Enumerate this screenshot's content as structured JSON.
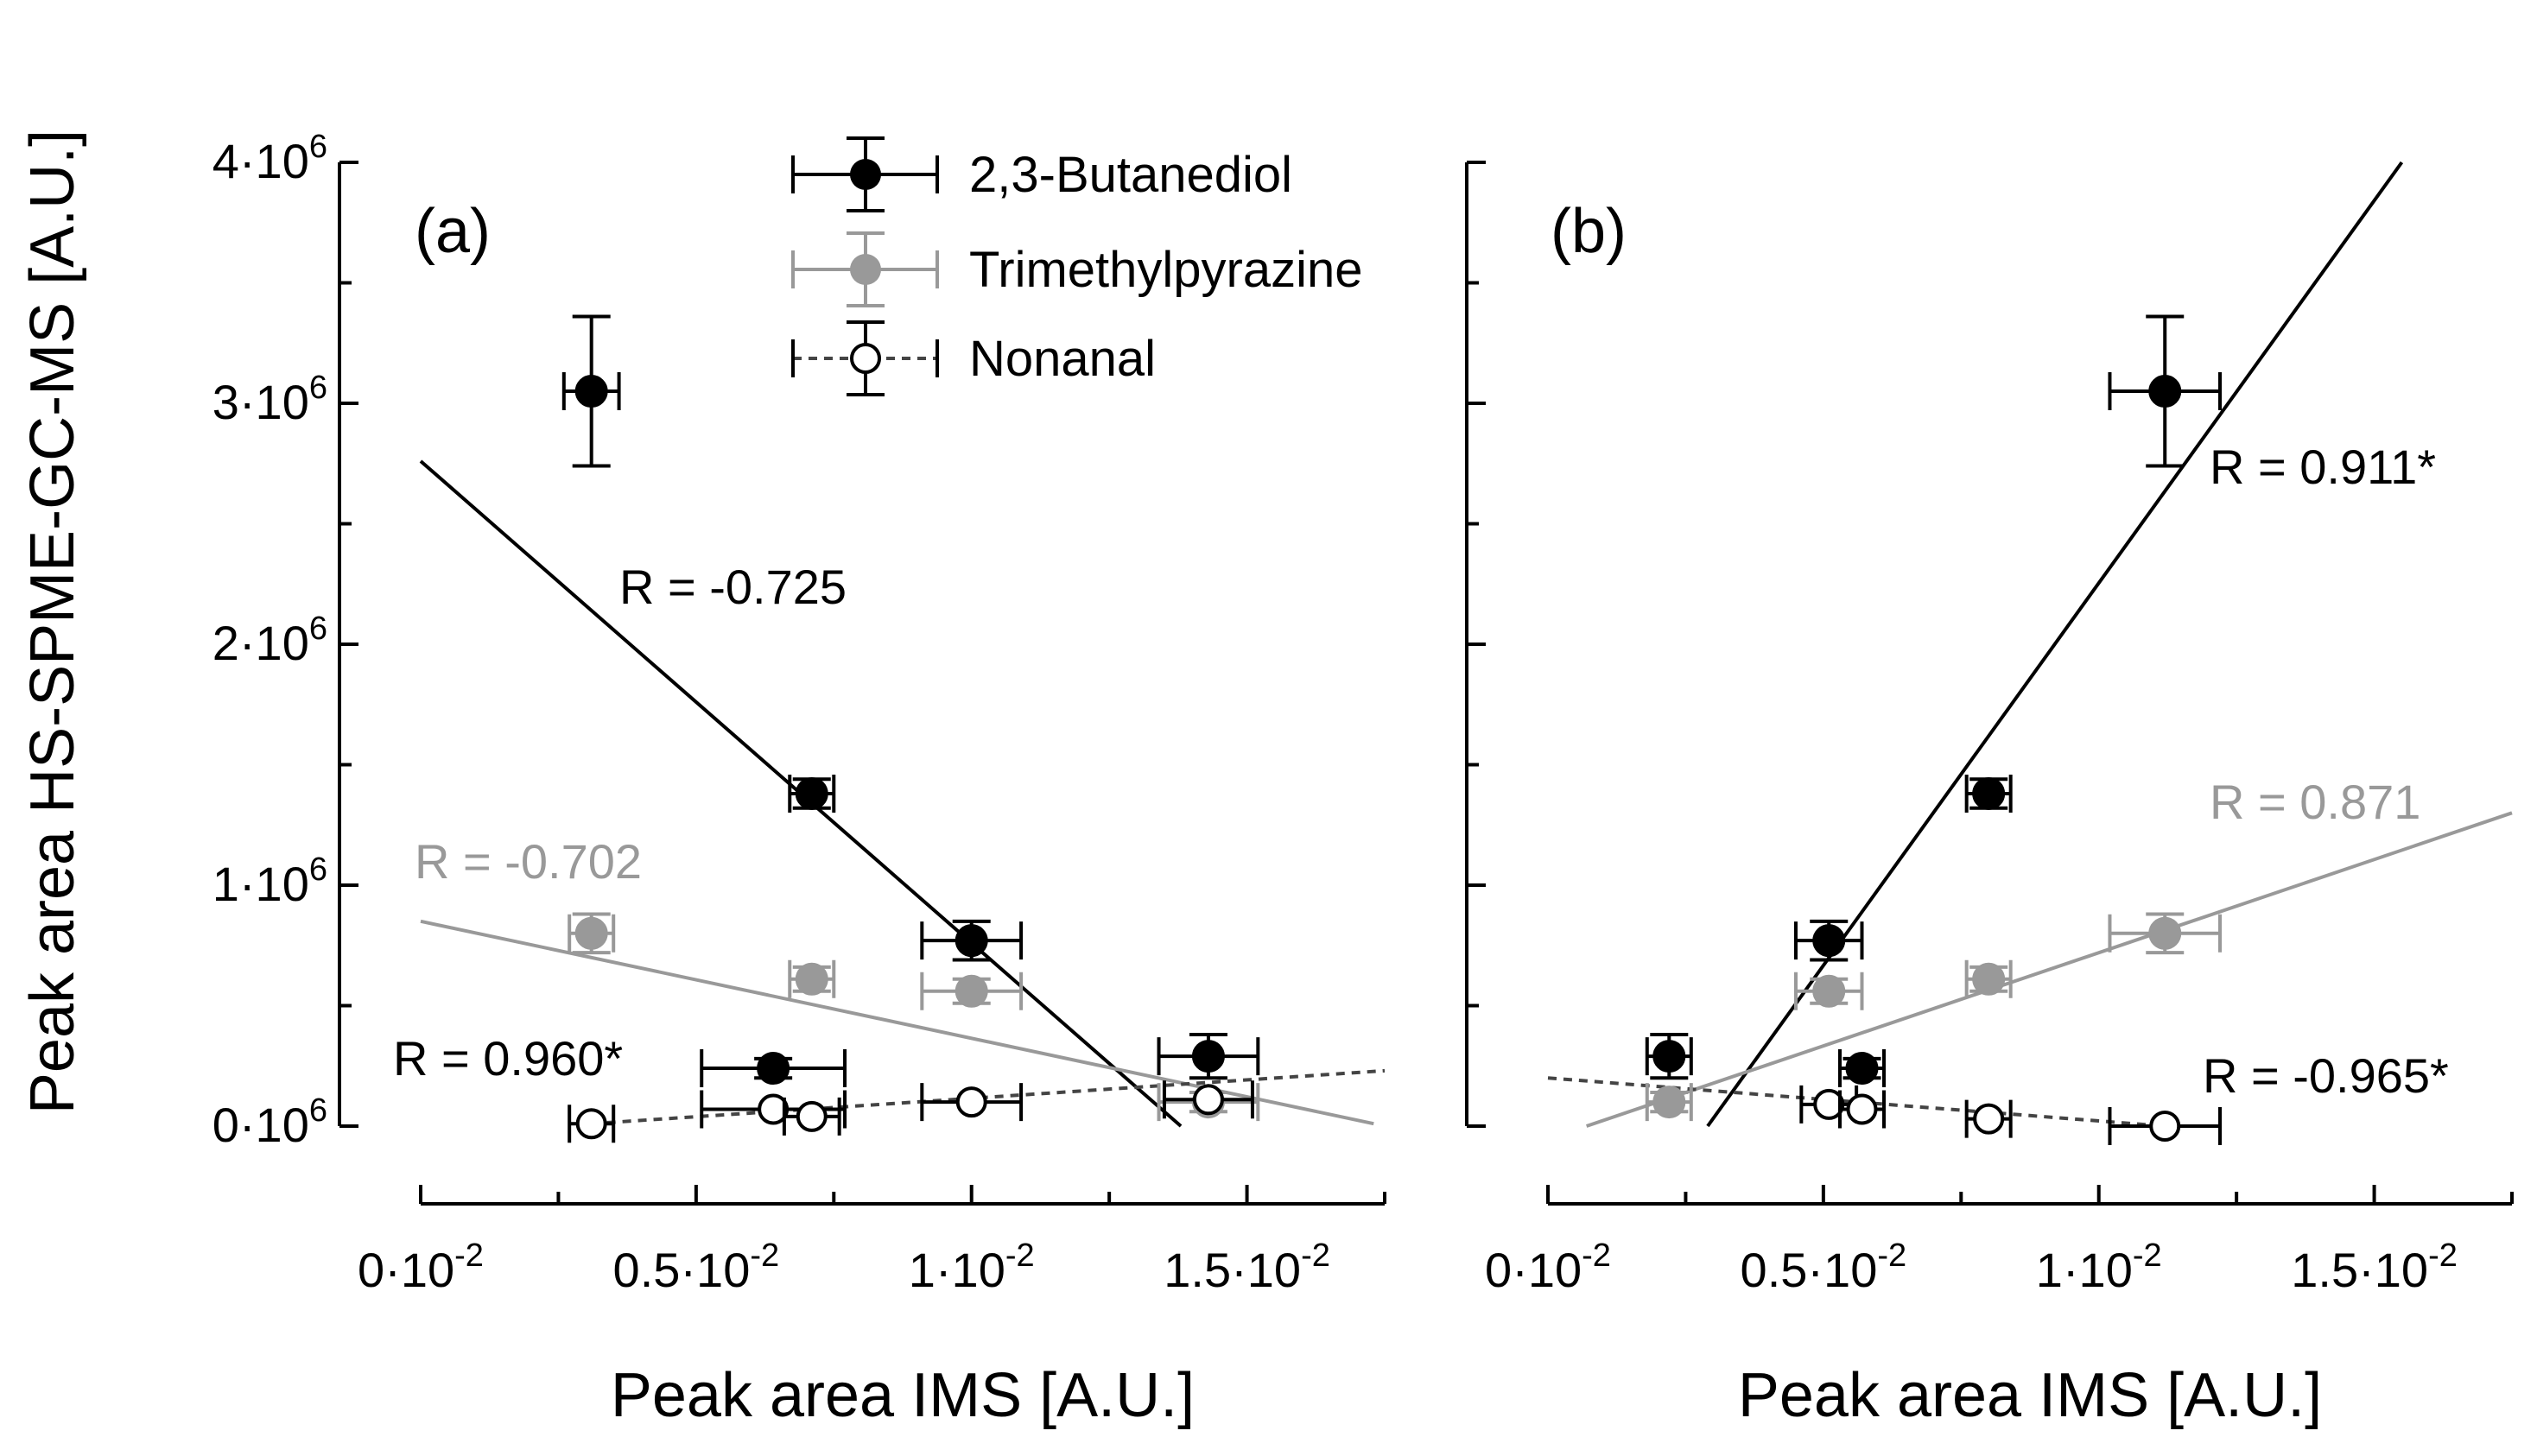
{
  "figure": {
    "ylabel": "Peak area HS-SPME-GC-MS [A.U.]",
    "legend": [
      {
        "name": "2,3-Butanediol",
        "color": "#000000",
        "marker": "filled",
        "line": "solid"
      },
      {
        "name": "Trimethylpyrazine",
        "color": "#999999",
        "marker": "filled",
        "line": "solid"
      },
      {
        "name": "Nonanal",
        "color": "#000000",
        "marker": "open",
        "line": "dotted"
      }
    ],
    "y_ticks": [
      {
        "value": 0,
        "base": "0·10",
        "exp": "6"
      },
      {
        "value": 1000000,
        "base": "1·10",
        "exp": "6"
      },
      {
        "value": 2000000,
        "base": "2·10",
        "exp": "6"
      },
      {
        "value": 3000000,
        "base": "3·10",
        "exp": "6"
      },
      {
        "value": 4000000,
        "base": "4·10",
        "exp": "6"
      }
    ]
  },
  "chart_data": [
    {
      "type": "scatter",
      "panel_label": "(a)",
      "xlabel": "Peak area IMS [A.U.]",
      "ylabel": "Peak area HS-SPME-GC-MS [A.U.]",
      "xlim": [
        0,
        0.0175
      ],
      "ylim": [
        0,
        4000000
      ],
      "x_ticks": [
        {
          "value": 0,
          "base": "0·10",
          "exp": "-2"
        },
        {
          "value": 0.005,
          "base": "0.5·10",
          "exp": "-2"
        },
        {
          "value": 0.01,
          "base": "1·10",
          "exp": "-2"
        },
        {
          "value": 0.015,
          "base": "1.5·10",
          "exp": "-2"
        }
      ],
      "series": [
        {
          "name": "2,3-Butanediol",
          "points": [
            {
              "x": 0.0031,
              "y": 3050000,
              "xerr": 0.0005,
              "yerr": 310000
            },
            {
              "x": 0.0071,
              "y": 1380000,
              "xerr": 0.0004,
              "yerr": 60000
            },
            {
              "x": 0.01,
              "y": 770000,
              "xerr": 0.0009,
              "yerr": 80000
            },
            {
              "x": 0.0064,
              "y": 240000,
              "xerr": 0.0013,
              "yerr": 40000
            },
            {
              "x": 0.0143,
              "y": 290000,
              "xerr": 0.0009,
              "yerr": 90000
            }
          ],
          "fit": {
            "x": [
              0.0,
              0.0138
            ],
            "y": [
              2760000,
              0
            ]
          },
          "r_label": "R = -0.725"
        },
        {
          "name": "Trimethylpyrazine",
          "points": [
            {
              "x": 0.0031,
              "y": 800000,
              "xerr": 0.0004,
              "yerr": 80000
            },
            {
              "x": 0.0071,
              "y": 610000,
              "xerr": 0.0004,
              "yerr": 50000
            },
            {
              "x": 0.01,
              "y": 560000,
              "xerr": 0.0009,
              "yerr": 50000
            },
            {
              "x": 0.0143,
              "y": 100000,
              "xerr": 0.0009,
              "yerr": 40000
            }
          ],
          "fit": {
            "x": [
              0.0,
              0.0173
            ],
            "y": [
              850000,
              10000
            ]
          },
          "r_label": "R = -0.702"
        },
        {
          "name": "Nonanal",
          "points": [
            {
              "x": 0.0031,
              "y": 10000,
              "xerr": 0.0004,
              "yerr": 0
            },
            {
              "x": 0.0064,
              "y": 70000,
              "xerr": 0.0013,
              "yerr": 0
            },
            {
              "x": 0.0071,
              "y": 40000,
              "xerr": 0.0005,
              "yerr": 0
            },
            {
              "x": 0.01,
              "y": 100000,
              "xerr": 0.0009,
              "yerr": 0
            },
            {
              "x": 0.0143,
              "y": 110000,
              "xerr": 0.0008,
              "yerr": 0
            }
          ],
          "fit": {
            "x": [
              0.0031,
              0.0175
            ],
            "y": [
              10000,
              230000
            ]
          },
          "r_label": "R = 0.960*"
        }
      ]
    },
    {
      "type": "scatter",
      "panel_label": "(b)",
      "xlabel": "Peak area IMS [A.U.]",
      "ylabel": "Peak area HS-SPME-GC-MS [A.U.]",
      "xlim": [
        0,
        0.0175
      ],
      "ylim": [
        0,
        4000000
      ],
      "x_ticks": [
        {
          "value": 0,
          "base": "0·10",
          "exp": "-2"
        },
        {
          "value": 0.005,
          "base": "0.5·10",
          "exp": "-2"
        },
        {
          "value": 0.01,
          "base": "1·10",
          "exp": "-2"
        },
        {
          "value": 0.015,
          "base": "1.5·10",
          "exp": "-2"
        }
      ],
      "series": [
        {
          "name": "2,3-Butanediol",
          "points": [
            {
              "x": 0.0022,
              "y": 290000,
              "xerr": 0.0004,
              "yerr": 90000
            },
            {
              "x": 0.0051,
              "y": 770000,
              "xerr": 0.0006,
              "yerr": 80000
            },
            {
              "x": 0.0057,
              "y": 240000,
              "xerr": 0.0004,
              "yerr": 40000
            },
            {
              "x": 0.008,
              "y": 1380000,
              "xerr": 0.0004,
              "yerr": 60000
            },
            {
              "x": 0.0112,
              "y": 3050000,
              "xerr": 0.001,
              "yerr": 310000
            }
          ],
          "fit": {
            "x": [
              0.0029,
              0.0155
            ],
            "y": [
              0,
              4000000
            ]
          },
          "r_label": "R = 0.911*"
        },
        {
          "name": "Trimethylpyrazine",
          "points": [
            {
              "x": 0.0022,
              "y": 100000,
              "xerr": 0.0004,
              "yerr": 40000
            },
            {
              "x": 0.0051,
              "y": 560000,
              "xerr": 0.0006,
              "yerr": 50000
            },
            {
              "x": 0.008,
              "y": 610000,
              "xerr": 0.0004,
              "yerr": 50000
            },
            {
              "x": 0.0112,
              "y": 800000,
              "xerr": 0.001,
              "yerr": 80000
            }
          ],
          "fit": {
            "x": [
              0.0007,
              0.0175
            ],
            "y": [
              0,
              1300000
            ]
          },
          "r_label": "R = 0.871"
        },
        {
          "name": "Nonanal",
          "points": [
            {
              "x": 0.0051,
              "y": 90000,
              "xerr": 0.0005,
              "yerr": 0
            },
            {
              "x": 0.0057,
              "y": 70000,
              "xerr": 0.0004,
              "yerr": 0
            },
            {
              "x": 0.008,
              "y": 30000,
              "xerr": 0.0004,
              "yerr": 0
            },
            {
              "x": 0.0112,
              "y": 0,
              "xerr": 0.001,
              "yerr": 0
            }
          ],
          "fit": {
            "x": [
              0.0,
              0.0112
            ],
            "y": [
              200000,
              0
            ]
          },
          "r_label": "R = -0.965*"
        }
      ]
    }
  ]
}
